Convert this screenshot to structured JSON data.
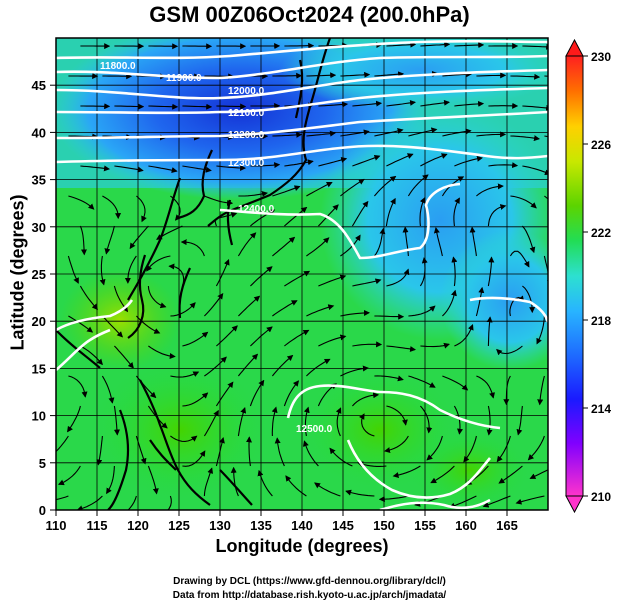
{
  "title": "GSM 00Z06Oct2024 (200.0hPa)",
  "xlabel": "Longitude (degrees)",
  "ylabel": "Latitude  (degrees)",
  "credit_line1": "Drawing by DCL (https://www.gfd-dennou.org/library/dcl/)",
  "credit_line2": "Data from http://database.rish.kyoto-u.ac.jp/arch/jmadata/",
  "chart_data": {
    "type": "map",
    "x_ticks": [
      "110",
      "115",
      "120",
      "125",
      "130",
      "135",
      "140",
      "145",
      "150",
      "155",
      "160",
      "165"
    ],
    "y_ticks": [
      "0",
      "5",
      "10",
      "15",
      "20",
      "25",
      "30",
      "35",
      "40",
      "45"
    ],
    "xlim": [
      110,
      170
    ],
    "ylim": [
      0,
      50
    ],
    "colorbar": {
      "ticks": [
        "210",
        "214",
        "218",
        "222",
        "226",
        "230"
      ],
      "range": [
        210,
        230
      ],
      "colors": [
        "#ff33cc",
        "#7a00ff",
        "#1a1aff",
        "#1e6bff",
        "#2ab0ff",
        "#2de0e0",
        "#20e070",
        "#33cc00",
        "#99dd00",
        "#f0f000",
        "#ffaa00",
        "#ff5a00",
        "#ff1a1a"
      ]
    },
    "contour_labels": [
      "11800.0",
      "11900.0",
      "12000.0",
      "12100.0",
      "12200.0",
      "12300.0",
      "12400.0",
      "12500.0"
    ]
  }
}
